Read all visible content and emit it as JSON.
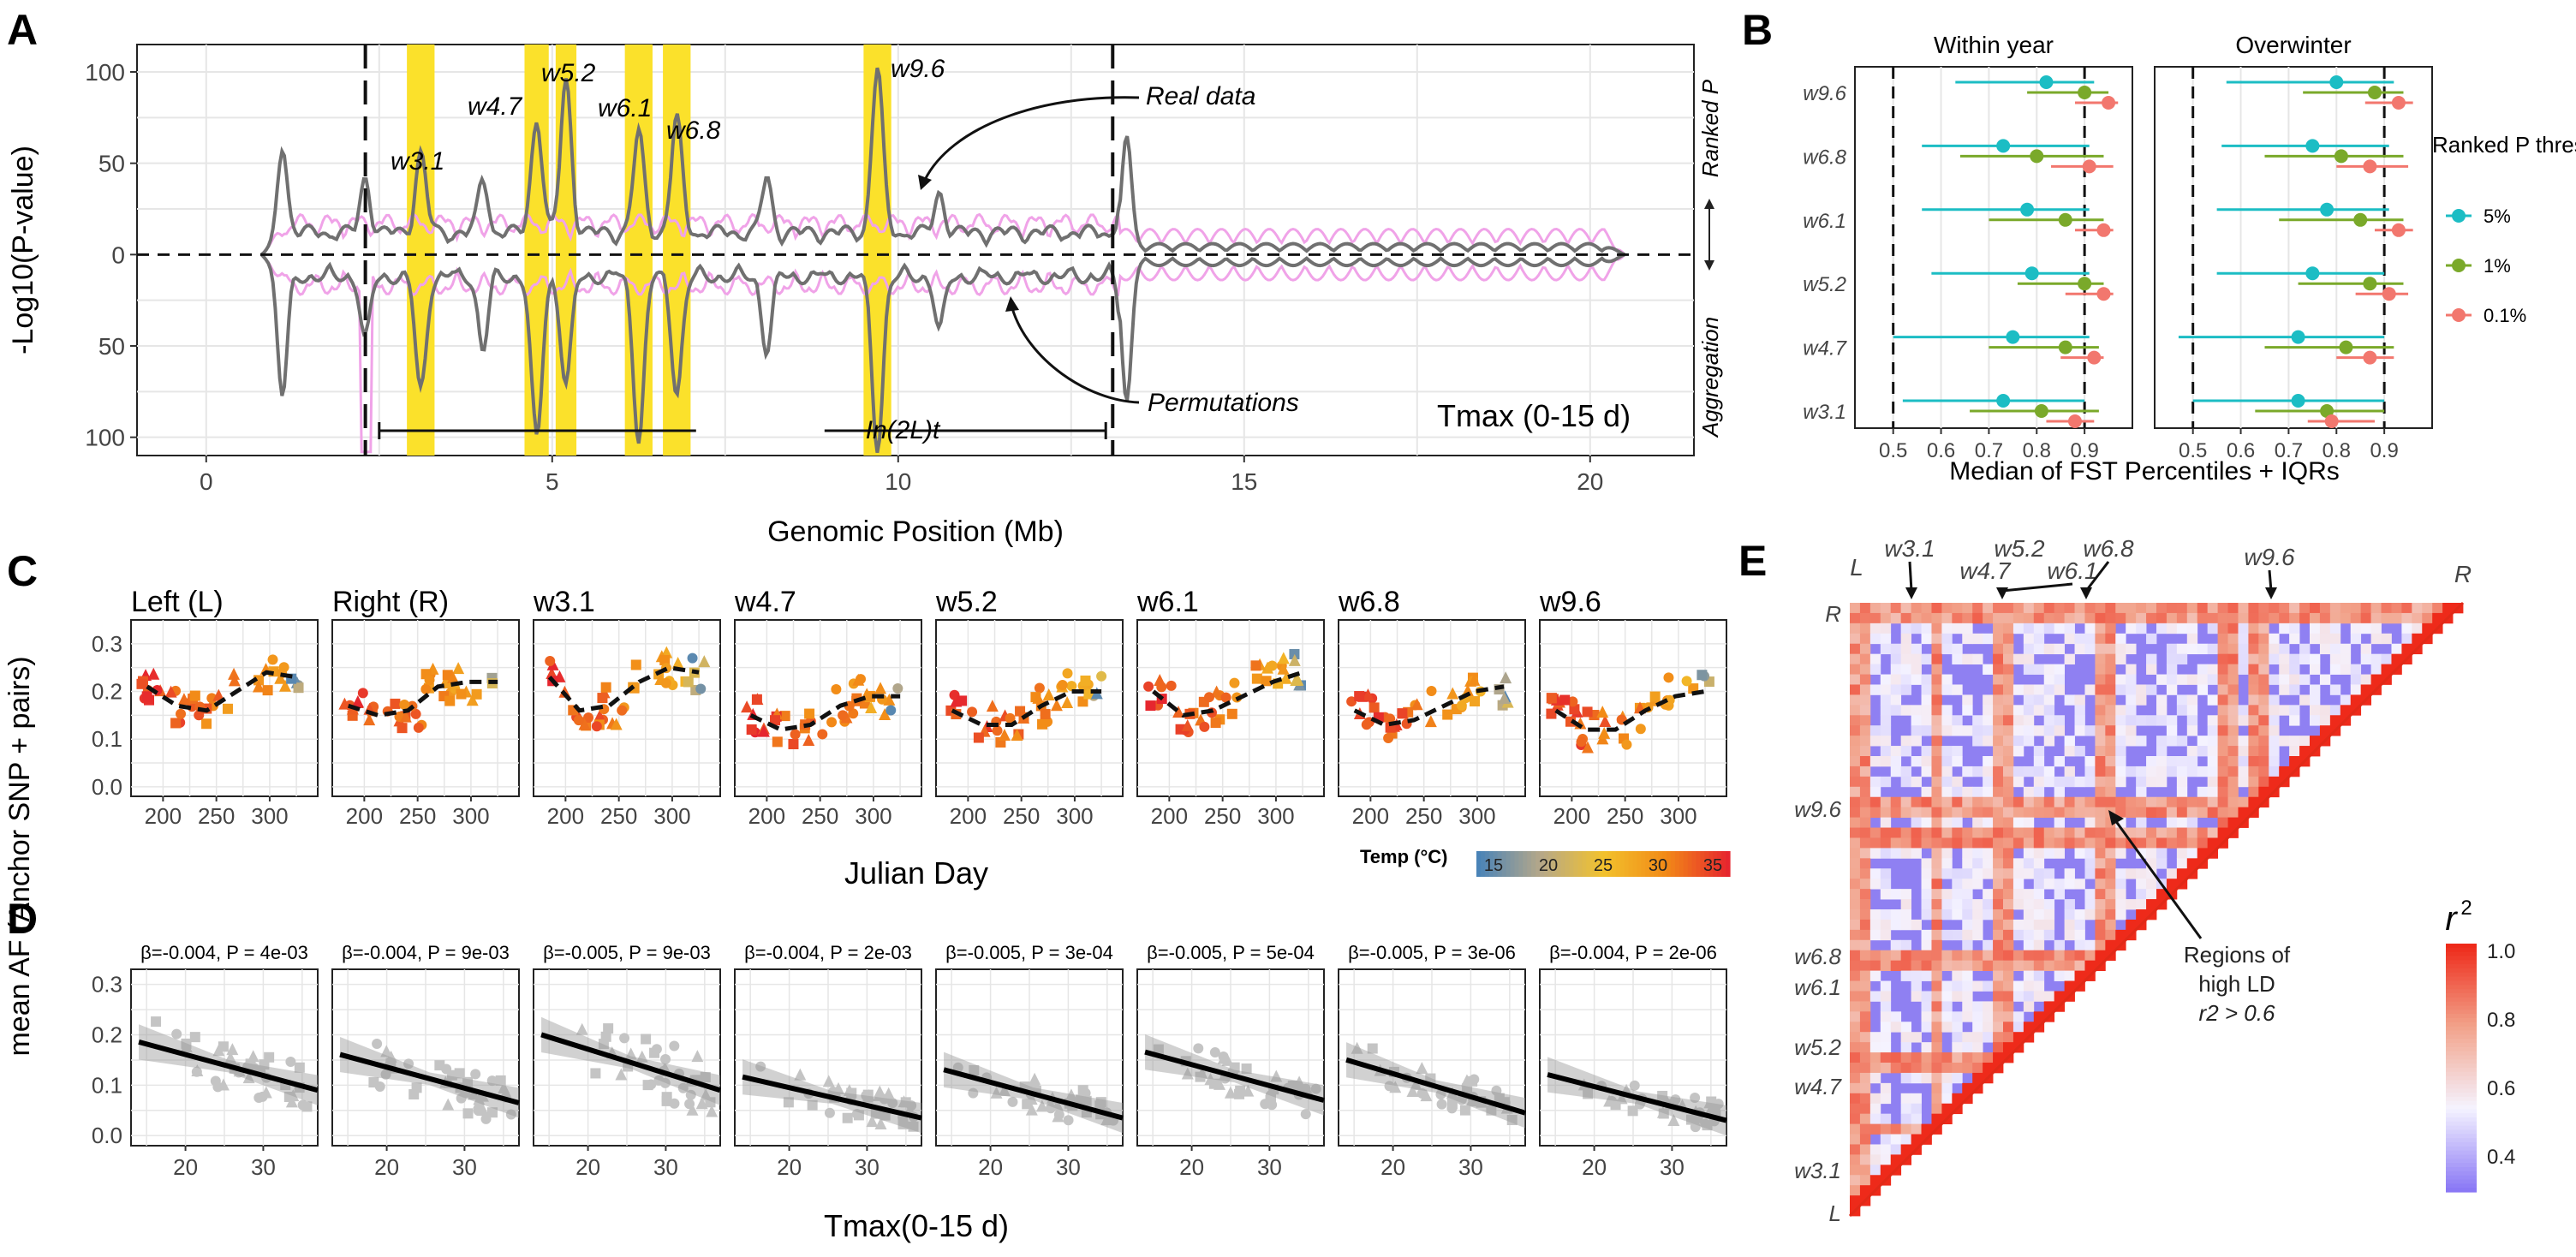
{
  "colors": {
    "highlight": "#fbe12b",
    "real_line": "#707070",
    "perm_line": "#f0a3e8",
    "thr_5": "#1cbdc4",
    "thr_1": "#7aa92a",
    "thr_01": "#f2776e",
    "grid": "#e6e6e6",
    "temp_scale": [
      "#4a83b7",
      "#b6a889",
      "#f2c22d",
      "#f28a17",
      "#e6262e"
    ],
    "ld_scale": [
      "#8a78f5",
      "#f5f3ff",
      "#f2a38b",
      "#ee2a1a"
    ]
  },
  "panels": {
    "A": {
      "letter": "A",
      "ylabel": "-Log10(P-value)",
      "xlabel": "Genomic Position (Mb)",
      "right_top": "Ranked P",
      "right_bottom": "Aggregation",
      "footer": "Tmax (0-15 d)",
      "inversion_label": "In(2L)t",
      "annotation_real": "Real data",
      "annotation_perm": "Permutations"
    },
    "B": {
      "letter": "B",
      "xlabel": "Median of FST Percentiles + IQRs",
      "legend_title": "Ranked P threshold",
      "legend_items": [
        "5%",
        "1%",
        "0.1%"
      ]
    },
    "C": {
      "letter": "C",
      "xlabel": "Julian Day",
      "legend_title": "Temp (°C)",
      "temp_ticks": [
        "15",
        "20",
        "25",
        "30",
        "35"
      ]
    },
    "D": {
      "letter": "D",
      "xlabel": "Tmax(0-15 d)",
      "shared_ylabel": "mean AF (Anchor SNP + pairs)"
    },
    "E": {
      "letter": "E",
      "legend_title": "r2",
      "annotation": [
        "Regions of",
        "high LD",
        "r2 > 0.6"
      ],
      "top_labels": [
        "L",
        "w3.1",
        "w4.7",
        "w5.2",
        "w6.1",
        "w6.8",
        "w9.6",
        "R"
      ],
      "left_labels": [
        "R",
        "w9.6",
        "w6.8",
        "w6.1",
        "w5.2",
        "w4.7",
        "w3.1",
        "L"
      ]
    }
  },
  "chart_data": [
    {
      "panel": "A",
      "type": "line",
      "title": "",
      "xlabel": "Genomic Position (Mb)",
      "ylabel": "-Log10(P-value)",
      "xlim": [
        -1,
        21.5
      ],
      "xticks": [
        0,
        5,
        10,
        15,
        20
      ],
      "ylim": [
        -110,
        115
      ],
      "yticks": [
        100,
        50,
        0,
        50,
        100
      ],
      "grid": true,
      "inversion_breakpoints": [
        2.3,
        13.1
      ],
      "inversion_span": [
        2.5,
        13.0
      ],
      "windows": [
        {
          "name": "w3.1",
          "start": 2.9,
          "end": 3.3,
          "peak_top": 53,
          "peak_bottom": 72
        },
        {
          "name": "w4.7",
          "start": 4.6,
          "end": 4.95,
          "peak_top": 73,
          "peak_bottom": 100
        },
        {
          "name": "w5.2",
          "start": 5.05,
          "end": 5.35,
          "peak_top": 93,
          "peak_bottom": 68
        },
        {
          "name": "w6.1",
          "start": 6.05,
          "end": 6.45,
          "peak_top": 64,
          "peak_bottom": 98
        },
        {
          "name": "w6.8",
          "start": 6.6,
          "end": 7.0,
          "peak_top": 72,
          "peak_bottom": 72
        },
        {
          "name": "w9.6",
          "start": 9.5,
          "end": 9.9,
          "peak_top": 100,
          "peak_bottom": 103
        }
      ],
      "series": [
        {
          "name": "Real data"
        },
        {
          "name": "Permutations"
        }
      ]
    },
    {
      "panel": "B",
      "type": "scatter",
      "facets": [
        "Within year",
        "Overwinter"
      ],
      "xlabel": "Median of FST Percentiles + IQRs",
      "xlim": [
        0.42,
        1.0
      ],
      "xticks": [
        0.5,
        0.6,
        0.7,
        0.8,
        0.9
      ],
      "reference_lines": [
        0.5,
        0.9
      ],
      "categories": [
        "w9.6",
        "w6.8",
        "w6.1",
        "w5.2",
        "w4.7",
        "w3.1"
      ],
      "series": [
        {
          "name": "5%",
          "facet": "Within year",
          "median": [
            0.82,
            0.73,
            0.78,
            0.79,
            0.75,
            0.73
          ],
          "low": [
            0.63,
            0.56,
            0.56,
            0.58,
            0.5,
            0.52
          ],
          "high": [
            0.92,
            0.91,
            0.91,
            0.91,
            0.91,
            0.9
          ]
        },
        {
          "name": "1%",
          "facet": "Within year",
          "median": [
            0.9,
            0.8,
            0.86,
            0.9,
            0.86,
            0.81
          ],
          "low": [
            0.78,
            0.64,
            0.7,
            0.76,
            0.7,
            0.66
          ],
          "high": [
            0.95,
            0.94,
            0.94,
            0.94,
            0.93,
            0.93
          ]
        },
        {
          "name": "0.1%",
          "facet": "Within year",
          "median": [
            0.95,
            0.91,
            0.94,
            0.94,
            0.92,
            0.88
          ],
          "low": [
            0.88,
            0.83,
            0.88,
            0.86,
            0.85,
            0.82
          ],
          "high": [
            0.97,
            0.96,
            0.96,
            0.96,
            0.94,
            0.92
          ]
        },
        {
          "name": "5%",
          "facet": "Overwinter",
          "median": [
            0.8,
            0.75,
            0.78,
            0.75,
            0.72,
            0.72
          ],
          "low": [
            0.57,
            0.56,
            0.55,
            0.55,
            0.47,
            0.5
          ],
          "high": [
            0.92,
            0.91,
            0.91,
            0.9,
            0.9,
            0.9
          ]
        },
        {
          "name": "1%",
          "facet": "Overwinter",
          "median": [
            0.88,
            0.81,
            0.85,
            0.87,
            0.82,
            0.78
          ],
          "low": [
            0.73,
            0.65,
            0.68,
            0.72,
            0.65,
            0.63
          ],
          "high": [
            0.94,
            0.94,
            0.94,
            0.94,
            0.92,
            0.9
          ]
        },
        {
          "name": "0.1%",
          "facet": "Overwinter",
          "median": [
            0.93,
            0.87,
            0.93,
            0.91,
            0.87,
            0.79
          ],
          "low": [
            0.86,
            0.8,
            0.88,
            0.84,
            0.8,
            0.74
          ],
          "high": [
            0.96,
            0.95,
            0.96,
            0.95,
            0.92,
            0.88
          ]
        }
      ]
    },
    {
      "panel": "C",
      "type": "scatter",
      "xlabel": "Julian Day",
      "xticks": [
        200,
        250,
        300
      ],
      "xlim": [
        170,
        345
      ],
      "ylim": [
        -0.02,
        0.35
      ],
      "yticks": [
        0.0,
        0.1,
        0.2,
        0.3
      ],
      "facets": [
        {
          "title": "Left (L)",
          "base": 0.17,
          "trend": [
            0.21,
            0.17,
            0.16,
            0.2,
            0.24,
            0.23
          ]
        },
        {
          "title": "Right (R)",
          "base": 0.16,
          "trend": [
            0.17,
            0.15,
            0.16,
            0.21,
            0.22,
            0.22
          ]
        },
        {
          "title": "w3.1",
          "base": 0.18,
          "trend": [
            0.23,
            0.16,
            0.17,
            0.22,
            0.25,
            0.24
          ]
        },
        {
          "title": "w4.7",
          "base": 0.14,
          "trend": [
            0.15,
            0.12,
            0.13,
            0.17,
            0.19,
            0.19
          ]
        },
        {
          "title": "w5.2",
          "base": 0.14,
          "trend": [
            0.16,
            0.13,
            0.13,
            0.17,
            0.2,
            0.2
          ]
        },
        {
          "title": "w6.1",
          "base": 0.17,
          "trend": [
            0.2,
            0.15,
            0.16,
            0.19,
            0.22,
            0.24
          ]
        },
        {
          "title": "w6.8",
          "base": 0.14,
          "trend": [
            0.16,
            0.13,
            0.14,
            0.17,
            0.2,
            0.21
          ]
        },
        {
          "title": "w9.6",
          "base": 0.14,
          "trend": [
            0.16,
            0.12,
            0.12,
            0.16,
            0.19,
            0.2
          ]
        }
      ]
    },
    {
      "panel": "D",
      "type": "scatter",
      "xlabel": "Tmax(0-15 d)",
      "xlim": [
        13,
        37
      ],
      "xticks": [
        20,
        30
      ],
      "ylim": [
        -0.02,
        0.33
      ],
      "yticks": [
        0.0,
        0.1,
        0.2,
        0.3
      ],
      "facets": [
        {
          "label": "β=-0.004, P = 4e-03",
          "fit": [
            0.19,
            0.09
          ],
          "spread": 0.05
        },
        {
          "label": "β=-0.004, P = 9e-03",
          "fit": [
            0.165,
            0.065
          ],
          "spread": 0.05
        },
        {
          "label": "β=-0.005, P = 9e-03",
          "fit": [
            0.205,
            0.09
          ],
          "spread": 0.06
        },
        {
          "label": "β=-0.004, P = 2e-03",
          "fit": [
            0.12,
            0.035
          ],
          "spread": 0.035
        },
        {
          "label": "β=-0.005, P = 3e-04",
          "fit": [
            0.135,
            0.035
          ],
          "spread": 0.035
        },
        {
          "label": "β=-0.005, P = 5e-04",
          "fit": [
            0.17,
            0.07
          ],
          "spread": 0.04
        },
        {
          "label": "β=-0.005, P = 3e-06",
          "fit": [
            0.155,
            0.045
          ],
          "spread": 0.04
        },
        {
          "label": "β=-0.004, P = 2e-06",
          "fit": [
            0.125,
            0.03
          ],
          "spread": 0.03
        }
      ]
    },
    {
      "panel": "E",
      "type": "heatmap",
      "legend_title": "r2",
      "scale_ticks": [
        "1.0",
        "0.8",
        "0.6",
        "0.4"
      ],
      "threshold": "r2 > 0.6",
      "block_positions": [
        0.02,
        0.14,
        0.25,
        0.42,
        0.61,
        0.62,
        0.67,
        0.98
      ],
      "block_names": [
        "L",
        "w3.1",
        "w4.7",
        "w5.2",
        "w6.1",
        "w6.8",
        "w9.6",
        "R"
      ]
    }
  ]
}
